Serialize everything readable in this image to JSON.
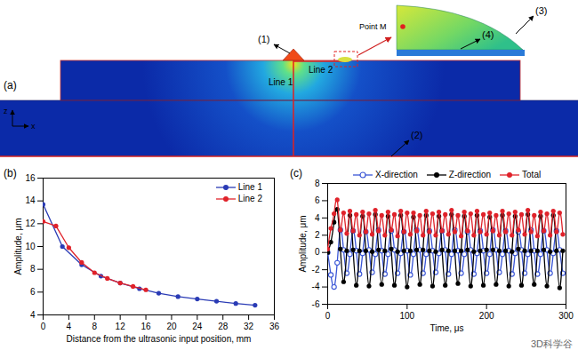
{
  "diagram": {
    "panel_label": "(a)",
    "callouts": [
      "(1)",
      "(2)",
      "(3)",
      "(4)"
    ],
    "point": "Point M",
    "lines": [
      "Line 1",
      "Line 2"
    ],
    "axes": [
      "z",
      "x"
    ]
  },
  "watermark": "3D科学谷",
  "chart_data": [
    {
      "type": "line",
      "title": "(b)",
      "x_label": "Distance from the ultrasonic input position, mm",
      "y_label": "Amplitude, μm",
      "xlim": [
        0,
        36
      ],
      "xticks": [
        0,
        4,
        8,
        12,
        16,
        20,
        24,
        28,
        32,
        36
      ],
      "ylim": [
        4,
        16
      ],
      "yticks": [
        4,
        6,
        8,
        10,
        12,
        14,
        16
      ],
      "legend": "upper right",
      "series": [
        {
          "name": "Line 1",
          "color": "#2a3bb5",
          "marker": "circle",
          "x": [
            0,
            3,
            6,
            9,
            12,
            15,
            18,
            21,
            24,
            27,
            30,
            33
          ],
          "values": [
            13.7,
            10.0,
            8.4,
            7.4,
            6.8,
            6.3,
            5.9,
            5.6,
            5.4,
            5.2,
            5.0,
            4.85
          ]
        },
        {
          "name": "Line 2",
          "color": "#e0222a",
          "marker": "circle",
          "x": [
            0,
            2,
            4,
            6,
            8,
            10,
            12,
            14,
            16
          ],
          "values": [
            12.2,
            11.8,
            9.9,
            8.6,
            7.7,
            7.2,
            6.8,
            6.5,
            6.2
          ]
        }
      ]
    },
    {
      "type": "line",
      "title": "(c)",
      "x_label": "Time, μs",
      "y_label": "Amplitude, μm",
      "xlim": [
        0,
        300
      ],
      "xticks": [
        0,
        100,
        200,
        300
      ],
      "ylim": [
        -6,
        8
      ],
      "yticks": [
        -6,
        -4,
        -2,
        0,
        2,
        4,
        6,
        8
      ],
      "legend": "top",
      "x": [
        0,
        4,
        8,
        12,
        16,
        20,
        24,
        28,
        32,
        36,
        40,
        44,
        48,
        52,
        56,
        60,
        64,
        68,
        72,
        76,
        80,
        84,
        88,
        92,
        96,
        100,
        104,
        108,
        112,
        116,
        120,
        124,
        128,
        132,
        136,
        140,
        144,
        148,
        152,
        156,
        160,
        164,
        168,
        172,
        176,
        180,
        184,
        188,
        192,
        196,
        200,
        204,
        208,
        212,
        216,
        220,
        224,
        228,
        232,
        236,
        240,
        244,
        248,
        252,
        256,
        260,
        264,
        268,
        272,
        276,
        280,
        284,
        288,
        292,
        296
      ],
      "series": [
        {
          "name": "X-direction",
          "color": "#3a56d6",
          "marker": "open_circle",
          "values": [
            0,
            -2.6,
            -4.0,
            -1.2,
            2.6,
            0.3,
            -2.4,
            -0.2,
            2.5,
            0.2,
            -2.5,
            -0.1,
            2.4,
            0.3,
            -2.3,
            -0.2,
            2.6,
            0.2,
            -2.5,
            -0.2,
            2.5,
            0.3,
            -2.4,
            -0.1,
            2.4,
            0.2,
            -2.6,
            -0.2,
            2.6,
            0.3,
            -2.4,
            -0.2,
            2.5,
            0.2,
            -2.3,
            -0.1,
            2.5,
            0.3,
            -2.5,
            -0.2,
            2.6,
            0.2,
            -2.4,
            -0.2,
            2.4,
            0.3,
            -2.5,
            -0.1,
            2.5,
            0.2,
            -2.4,
            -0.2,
            2.6,
            0.3,
            -2.3,
            -0.2,
            2.5,
            0.2,
            -2.5,
            -0.1,
            2.4,
            0.3,
            -2.4,
            -0.2,
            2.6,
            0.2,
            -2.5,
            -0.2,
            2.5,
            0.3,
            -2.4,
            -0.1,
            2.5,
            0.3,
            -2.4
          ]
        },
        {
          "name": "Z-direction",
          "color": "#000000",
          "marker": "circle",
          "values": [
            0,
            1.2,
            3.5,
            5.0,
            0.4,
            -3.4,
            0.2,
            4.3,
            0.3,
            -3.8,
            0.2,
            4.2,
            0.2,
            -3.9,
            0.1,
            4.4,
            0.3,
            -3.7,
            0.2,
            4.2,
            0.4,
            -3.8,
            0.1,
            4.3,
            0.2,
            -4.0,
            0.2,
            4.1,
            0.3,
            -3.7,
            0.3,
            4.3,
            0.2,
            -3.9,
            0.1,
            4.2,
            0.3,
            -3.8,
            0.2,
            4.4,
            0.2,
            -3.6,
            0.2,
            4.2,
            0.3,
            -3.9,
            0.1,
            4.3,
            0.2,
            -3.8,
            0.3,
            4.1,
            0.3,
            -3.7,
            0.2,
            4.3,
            0.2,
            -3.9,
            0.1,
            4.2,
            0.4,
            -3.8,
            0.2,
            4.4,
            0.2,
            -3.7,
            0.2,
            4.2,
            0.3,
            -3.9,
            0.1,
            4.3,
            0.2,
            -4.1,
            0.2
          ]
        },
        {
          "name": "Total",
          "color": "#e0222a",
          "marker": "circle",
          "values": [
            0.4,
            2.8,
            4.5,
            6.1,
            2.6,
            4.6,
            2.2,
            4.8,
            2.5,
            4.4,
            2.0,
            4.7,
            2.4,
            4.5,
            2.1,
            4.9,
            2.5,
            4.3,
            2.0,
            4.7,
            2.6,
            4.4,
            1.9,
            4.8,
            2.4,
            4.6,
            2.1,
            4.6,
            2.5,
            4.3,
            2.0,
            4.8,
            2.4,
            4.5,
            2.0,
            4.7,
            2.5,
            4.4,
            2.1,
            4.9,
            2.4,
            4.3,
            1.9,
            4.7,
            2.5,
            4.5,
            2.0,
            4.8,
            2.4,
            4.4,
            2.1,
            4.6,
            2.5,
            4.3,
            2.0,
            4.8,
            2.4,
            4.5,
            2.0,
            4.7,
            2.6,
            4.4,
            2.1,
            4.9,
            2.4,
            4.3,
            1.9,
            4.7,
            2.5,
            4.5,
            2.0,
            4.8,
            2.4,
            4.6,
            2.1
          ]
        }
      ]
    }
  ]
}
